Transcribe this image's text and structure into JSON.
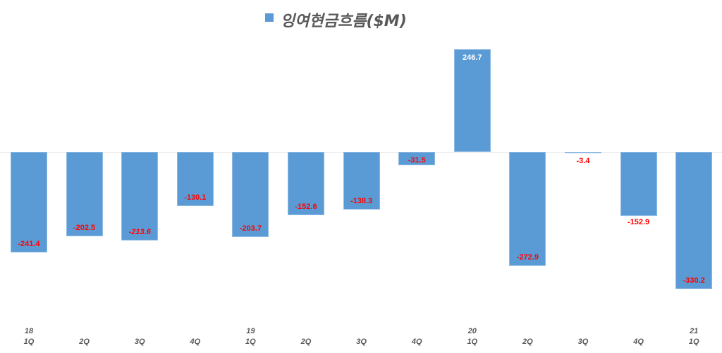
{
  "chart_data": {
    "type": "bar",
    "title": "",
    "legend": [
      {
        "name": "잉여현금흐름($M)",
        "color": "#5b9bd5"
      }
    ],
    "legend_position": "top",
    "xlabel": "",
    "ylabel": "",
    "grid": false,
    "ylim": [
      -350,
      260
    ],
    "categories": [
      "18 1Q",
      "2Q",
      "3Q",
      "4Q",
      "19 1Q",
      "2Q",
      "3Q",
      "4Q",
      "20 1Q",
      "2Q",
      "3Q",
      "4Q",
      "21 1Q"
    ],
    "tick_labels": [
      {
        "year": "18",
        "q": "1Q"
      },
      {
        "year": "",
        "q": "2Q"
      },
      {
        "year": "",
        "q": "3Q"
      },
      {
        "year": "",
        "q": "4Q"
      },
      {
        "year": "19",
        "q": "1Q"
      },
      {
        "year": "",
        "q": "2Q"
      },
      {
        "year": "",
        "q": "3Q"
      },
      {
        "year": "",
        "q": "4Q"
      },
      {
        "year": "20",
        "q": "1Q"
      },
      {
        "year": "",
        "q": "2Q"
      },
      {
        "year": "",
        "q": "3Q"
      },
      {
        "year": "",
        "q": "4Q"
      },
      {
        "year": "21",
        "q": "1Q"
      }
    ],
    "series": [
      {
        "name": "잉여현금흐름($M)",
        "color": "#5b9bd5",
        "values": [
          -241.4,
          -202.5,
          -213.6,
          -130.1,
          -203.7,
          -152.6,
          -138.3,
          -31.5,
          246.7,
          -272.9,
          -3.4,
          -152.9,
          -330.2
        ],
        "labels": [
          "-241.4",
          "-202.5",
          "-213.6",
          "-130.1",
          "-203.7",
          "-152.6",
          "-138.3",
          "-31.5",
          "246.7",
          "-272.9",
          "-3.4",
          "-152.9",
          "-330.2"
        ]
      }
    ],
    "label_colors": {
      "negative": "#ff0000",
      "positive": "#ffffff"
    }
  },
  "legend": {
    "label": "잉여현금흐름($M)"
  }
}
